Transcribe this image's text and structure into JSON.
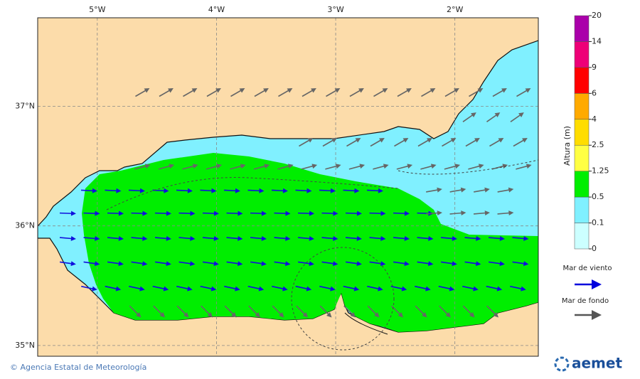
{
  "map": {
    "xlim": [
      -5.5,
      -1.3
    ],
    "ylim": [
      34.91,
      37.74
    ],
    "xticks": [
      {
        "value": -5,
        "label": "5°W"
      },
      {
        "value": -4,
        "label": "4°W"
      },
      {
        "value": -3,
        "label": "3°W"
      },
      {
        "value": -2,
        "label": "2°W"
      }
    ],
    "yticks": [
      {
        "value": 37,
        "label": "37°N"
      },
      {
        "value": 36,
        "label": "36°N"
      },
      {
        "value": 35,
        "label": "35°N"
      }
    ]
  },
  "colorbar": {
    "title": "Altura (m)",
    "ticks": [
      0,
      0.1,
      0.5,
      1.25,
      2.5,
      4,
      6,
      9,
      14,
      20
    ],
    "colors": [
      "#ccffff",
      "#80f0ff",
      "#00ee00",
      "#ffff44",
      "#ffdd00",
      "#ffaa00",
      "#ff0000",
      "#ee0077",
      "#aa00aa"
    ]
  },
  "legend": {
    "wind_sea": "Mar de viento",
    "swell": "Mar de fondo"
  },
  "footer": {
    "credit": "© Agencia Estatal de Meteorología",
    "logo": "aemet"
  }
}
